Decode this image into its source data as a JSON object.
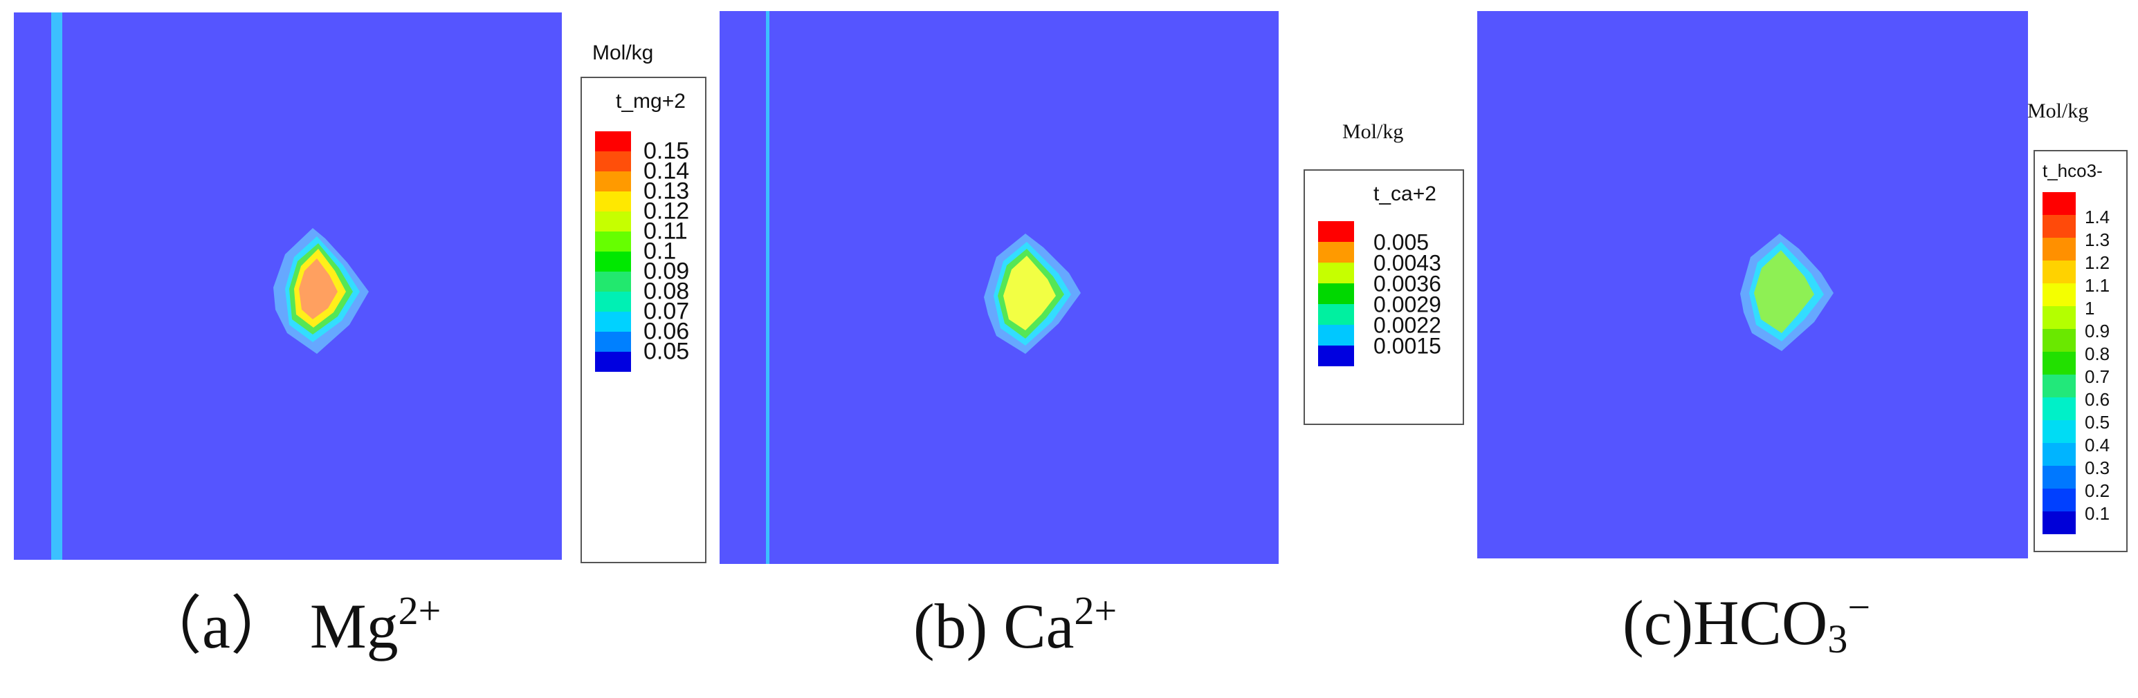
{
  "panels": [
    {
      "id": "a",
      "unit_label": "Mol/kg",
      "legend_title": "t_mg+2",
      "legend_values": [
        "0.15",
        "0.14",
        "0.13",
        "0.12",
        "0.11",
        "0.1",
        "0.09",
        "0.08",
        "0.07",
        "0.06",
        "0.05"
      ],
      "legend_colors": [
        "#ff0000",
        "#ff4f0a",
        "#ff9a00",
        "#ffe800",
        "#c6ff00",
        "#66ff00",
        "#00e800",
        "#22e86e",
        "#00f0b4",
        "#00d2ff",
        "#0080ff",
        "#0000e0"
      ],
      "caption_prefix": "（a）",
      "caption_text": "Mg",
      "caption_sup": "2+"
    },
    {
      "id": "b",
      "unit_label": "Mol/kg",
      "legend_title": "t_ca+2",
      "legend_values": [
        "0.005",
        "0.0043",
        "0.0036",
        "0.0029",
        "0.0022",
        "0.0015"
      ],
      "legend_colors": [
        "#ff0000",
        "#ff9a00",
        "#c6ff00",
        "#00d800",
        "#00f0a0",
        "#00c8ff",
        "#0000e0"
      ],
      "caption_prefix": "(b)",
      "caption_text": "Ca",
      "caption_sup": "2+"
    },
    {
      "id": "c",
      "unit_label": "Mol/kg",
      "legend_title": "t_hco3-",
      "legend_values": [
        "1.4",
        "1.3",
        "1.2",
        "1.1",
        "1",
        "0.9",
        "0.8",
        "0.7",
        "0.6",
        "0.5",
        "0.4",
        "0.3",
        "0.2",
        "0.1"
      ],
      "legend_colors": [
        "#ff0000",
        "#ff4a0a",
        "#ff9000",
        "#ffd200",
        "#f4ff00",
        "#b4ff00",
        "#6ae800",
        "#22e000",
        "#22e87a",
        "#00f0c8",
        "#00dcf4",
        "#00b4ff",
        "#0078ff",
        "#0040ff",
        "#0000d8"
      ],
      "caption_prefix": "(c)",
      "caption_text": "HCO",
      "caption_sub": "3",
      "caption_sup": "−"
    }
  ],
  "colors": {
    "domain": "#5555ff",
    "stripe": "#3cc0ff",
    "plume_outer": "#66a8ff",
    "plume_cyan": "#33ddff",
    "plume_green": "#55e655",
    "plume_yellow_a": "#ffef1a",
    "plume_core_a": "#ffa060",
    "plume_core_b": "#f2ff44",
    "plume_core_c": "#8ef054"
  }
}
